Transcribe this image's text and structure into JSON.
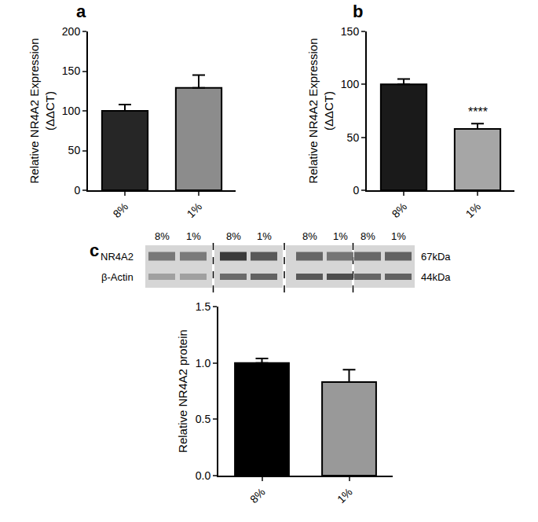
{
  "chart_data": [
    {
      "panel": "a",
      "type": "bar",
      "categories": [
        "8%",
        "1%"
      ],
      "values": [
        100,
        129
      ],
      "errors": [
        8,
        16
      ],
      "colors": [
        "#262626",
        "#8c8c8c"
      ],
      "y_label": [
        "Relative NR4A2 Expression",
        "(ΔΔCT)"
      ],
      "ylim": [
        0,
        200
      ],
      "yticks": [
        0,
        50,
        100,
        150,
        200
      ],
      "grid": false
    },
    {
      "panel": "b",
      "type": "bar",
      "categories": [
        "8%",
        "1%"
      ],
      "values": [
        100,
        58
      ],
      "errors": [
        5,
        5
      ],
      "colors": [
        "#1a1a1a",
        "#a6a6a6"
      ],
      "y_label": [
        "Relative NR4A2 Expression",
        "(ΔΔCT)"
      ],
      "ylim": [
        0,
        150
      ],
      "yticks": [
        0,
        50,
        100,
        150
      ],
      "grid": false,
      "annotations": [
        {
          "category": "1%",
          "text": "****"
        }
      ]
    },
    {
      "panel": "c",
      "type": "bar",
      "categories": [
        "8%",
        "1%"
      ],
      "values": [
        1.0,
        0.83
      ],
      "errors": [
        0.04,
        0.11
      ],
      "colors": [
        "#000000",
        "#999999"
      ],
      "y_label": [
        "Relative NR4A2 protein"
      ],
      "ylim": [
        0,
        1.5
      ],
      "yticks": [
        {
          "value": 0,
          "label": "0.0"
        },
        {
          "value": 0.5,
          "label": "0.5"
        },
        {
          "value": 1,
          "label": "1.0"
        },
        {
          "value": 1.5,
          "label": "1.5"
        }
      ],
      "grid": false
    }
  ],
  "blot": {
    "lanes": [
      "8%",
      "1%",
      "8%",
      "1%",
      "8%",
      "1%",
      "8%",
      "1%"
    ],
    "rows": [
      {
        "label": "NR4A2",
        "size": "67kDa"
      },
      {
        "label": "β-Actin",
        "size": "44kDa"
      }
    ]
  }
}
